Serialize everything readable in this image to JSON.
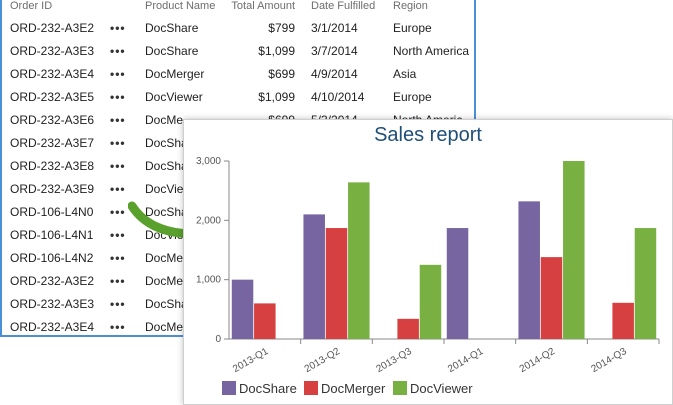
{
  "grid": {
    "columns": [
      "Order ID",
      "",
      "Product Name",
      "Total Amount",
      "Date Fulfilled",
      "Region"
    ],
    "rows": [
      {
        "id": "ORD-232-A3E2",
        "product": "DocShare",
        "amount": "$799",
        "date": "3/1/2014",
        "region": "Europe"
      },
      {
        "id": "ORD-232-A3E3",
        "product": "DocShare",
        "amount": "$1,099",
        "date": "3/7/2014",
        "region": "North America"
      },
      {
        "id": "ORD-232-A3E4",
        "product": "DocMerger",
        "amount": "$699",
        "date": "4/9/2014",
        "region": "Asia"
      },
      {
        "id": "ORD-232-A3E5",
        "product": "DocViewer",
        "amount": "$1,099",
        "date": "4/10/2014",
        "region": "Europe"
      },
      {
        "id": "ORD-232-A3E6",
        "product": "DocMe",
        "amount": "$699",
        "date": "5/3/2014",
        "region": "North Americ"
      },
      {
        "id": "ORD-232-A3E7",
        "product": "DocSha",
        "amount": "",
        "date": "",
        "region": ""
      },
      {
        "id": "ORD-232-A3E8",
        "product": "DocSha",
        "amount": "",
        "date": "",
        "region": ""
      },
      {
        "id": "ORD-232-A3E9",
        "product": "DocView",
        "amount": "",
        "date": "",
        "region": ""
      },
      {
        "id": "ORD-106-L4N0",
        "product": "DocSha",
        "amount": "",
        "date": "",
        "region": ""
      },
      {
        "id": "ORD-106-L4N1",
        "product": "DocView",
        "amount": "",
        "date": "",
        "region": ""
      },
      {
        "id": "ORD-106-L4N2",
        "product": "DocMe",
        "amount": "",
        "date": "",
        "region": ""
      },
      {
        "id": "ORD-232-A3E2",
        "product": "DocMe",
        "amount": "",
        "date": "",
        "region": ""
      },
      {
        "id": "ORD-232-A3E3",
        "product": "DocSha",
        "amount": "",
        "date": "",
        "region": ""
      },
      {
        "id": "ORD-232-A3E4",
        "product": "DocMe",
        "amount": "",
        "date": "",
        "region": ""
      }
    ],
    "row_menu_icon": "ellipsis-icon",
    "accent_color": "#4a90d9"
  },
  "arrow": {
    "icon": "curved-arrow-icon",
    "color": "#5aa02c"
  },
  "chart_data": {
    "type": "bar",
    "title": "Sales report",
    "categories": [
      "2013-Q1",
      "2013-Q2",
      "2013-Q3",
      "2014-Q1",
      "2014-Q2",
      "2014-Q3"
    ],
    "series": [
      {
        "name": "DocShare",
        "color": "#7665a0",
        "values": [
          1000,
          2100,
          0,
          1870,
          2320,
          0
        ]
      },
      {
        "name": "DocMerger",
        "color": "#d64040",
        "values": [
          600,
          1870,
          340,
          0,
          1380,
          610
        ]
      },
      {
        "name": "DocViewer",
        "color": "#78b042",
        "values": [
          0,
          2640,
          1250,
          0,
          3000,
          1870
        ]
      }
    ],
    "ylim": [
      0,
      3000
    ],
    "yticks": [
      0,
      1000,
      2000,
      3000
    ],
    "ytick_labels": [
      "0",
      "1,000",
      "2,000",
      "3,000"
    ],
    "grid": false,
    "legend_position": "bottom-left"
  }
}
